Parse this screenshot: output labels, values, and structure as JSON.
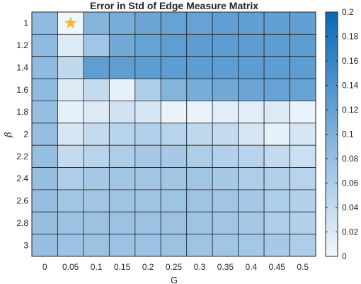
{
  "chart_data": {
    "type": "heatmap",
    "title": "Error in Std of Edge Measure Matrix",
    "xlabel": "G",
    "ylabel": "β",
    "x": [
      "0",
      "0.05",
      "0.1",
      "0.15",
      "0.2",
      "0.25",
      "0.3",
      "0.35",
      "0.4",
      "0.45",
      "0.5"
    ],
    "y": [
      "1",
      "1.2",
      "1.4",
      "1.6",
      "1.8",
      "2",
      "2.2",
      "2.4",
      "2.6",
      "2.8",
      "3"
    ],
    "values": [
      [
        0.085,
        0.003,
        0.095,
        0.105,
        0.115,
        0.12,
        0.12,
        0.123,
        0.123,
        0.123,
        0.123
      ],
      [
        0.085,
        0.02,
        0.07,
        0.11,
        0.12,
        0.125,
        0.127,
        0.127,
        0.127,
        0.127,
        0.127
      ],
      [
        0.085,
        0.045,
        0.125,
        0.125,
        0.127,
        0.127,
        0.127,
        0.127,
        0.127,
        0.127,
        0.127
      ],
      [
        0.085,
        0.02,
        0.04,
        0.01,
        0.06,
        0.095,
        0.105,
        0.11,
        0.115,
        0.12,
        0.12
      ],
      [
        0.08,
        0.012,
        0.018,
        0.03,
        0.025,
        0.008,
        0.008,
        0.015,
        0.015,
        0.02,
        0.008
      ],
      [
        0.08,
        0.025,
        0.04,
        0.05,
        0.055,
        0.05,
        0.045,
        0.04,
        0.025,
        0.01,
        0.025
      ],
      [
        0.08,
        0.04,
        0.05,
        0.06,
        0.065,
        0.065,
        0.06,
        0.055,
        0.05,
        0.04,
        0.035
      ],
      [
        0.08,
        0.06,
        0.065,
        0.07,
        0.07,
        0.07,
        0.07,
        0.065,
        0.06,
        0.055,
        0.05
      ],
      [
        0.08,
        0.07,
        0.07,
        0.072,
        0.072,
        0.072,
        0.072,
        0.07,
        0.065,
        0.06,
        0.055
      ],
      [
        0.08,
        0.075,
        0.075,
        0.075,
        0.075,
        0.075,
        0.072,
        0.07,
        0.065,
        0.06,
        0.055
      ],
      [
        0.08,
        0.075,
        0.075,
        0.075,
        0.075,
        0.075,
        0.072,
        0.07,
        0.068,
        0.065,
        0.06
      ]
    ],
    "marker": {
      "symbol": "star",
      "x": "0.05",
      "y": "1",
      "color": "#F5B82E"
    },
    "colorbar": {
      "range": [
        0,
        0.2
      ],
      "ticks": [
        "0",
        "0.02",
        "0.04",
        "0.06",
        "0.08",
        "0.1",
        "0.12",
        "0.14",
        "0.16",
        "0.18",
        "0.2"
      ],
      "low_color": "#F3F8FD",
      "high_color": "#0868B8"
    },
    "grid": true
  }
}
